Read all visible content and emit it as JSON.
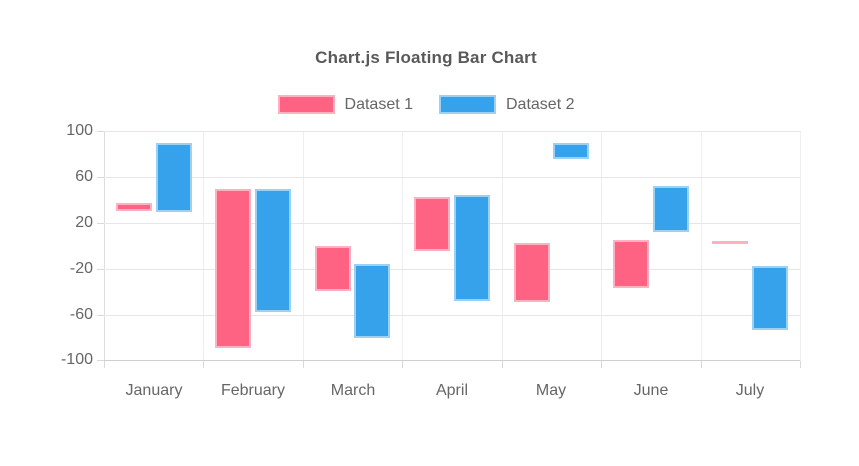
{
  "page": {
    "background": "#ffffff"
  },
  "chart_data": {
    "type": "bar",
    "variant": "floating-bar",
    "title": "Chart.js Floating Bar Chart",
    "title_color": "#595959",
    "text_color": "#666666",
    "categories": [
      "January",
      "February",
      "March",
      "April",
      "May",
      "June",
      "July"
    ],
    "series": [
      {
        "name": "Dataset 1",
        "color": "#FF6384",
        "border_color": "#FFB1C2",
        "values": [
          [
            30,
            37
          ],
          [
            -88,
            50
          ],
          [
            -39,
            0
          ],
          [
            -4,
            43
          ],
          [
            -48,
            3
          ],
          [
            -37,
            5
          ],
          [
            3,
            4
          ]
        ]
      },
      {
        "name": "Dataset 2",
        "color": "#36A2EB",
        "border_color": "#9BD1F5",
        "values": [
          [
            30,
            90
          ],
          [
            -57,
            50
          ],
          [
            -80,
            -16
          ],
          [
            -48,
            44
          ],
          [
            76,
            90
          ],
          [
            12,
            52
          ],
          [
            -73,
            -17
          ]
        ]
      }
    ],
    "xlabel": "",
    "ylabel": "",
    "ylim": [
      -100,
      100
    ],
    "y_ticks": [
      100,
      60,
      20,
      -20,
      -60,
      -100
    ],
    "grid": true,
    "legend_position": "top",
    "grid_color": "#e6e6e6",
    "axis_color": "#cfcfcf"
  }
}
